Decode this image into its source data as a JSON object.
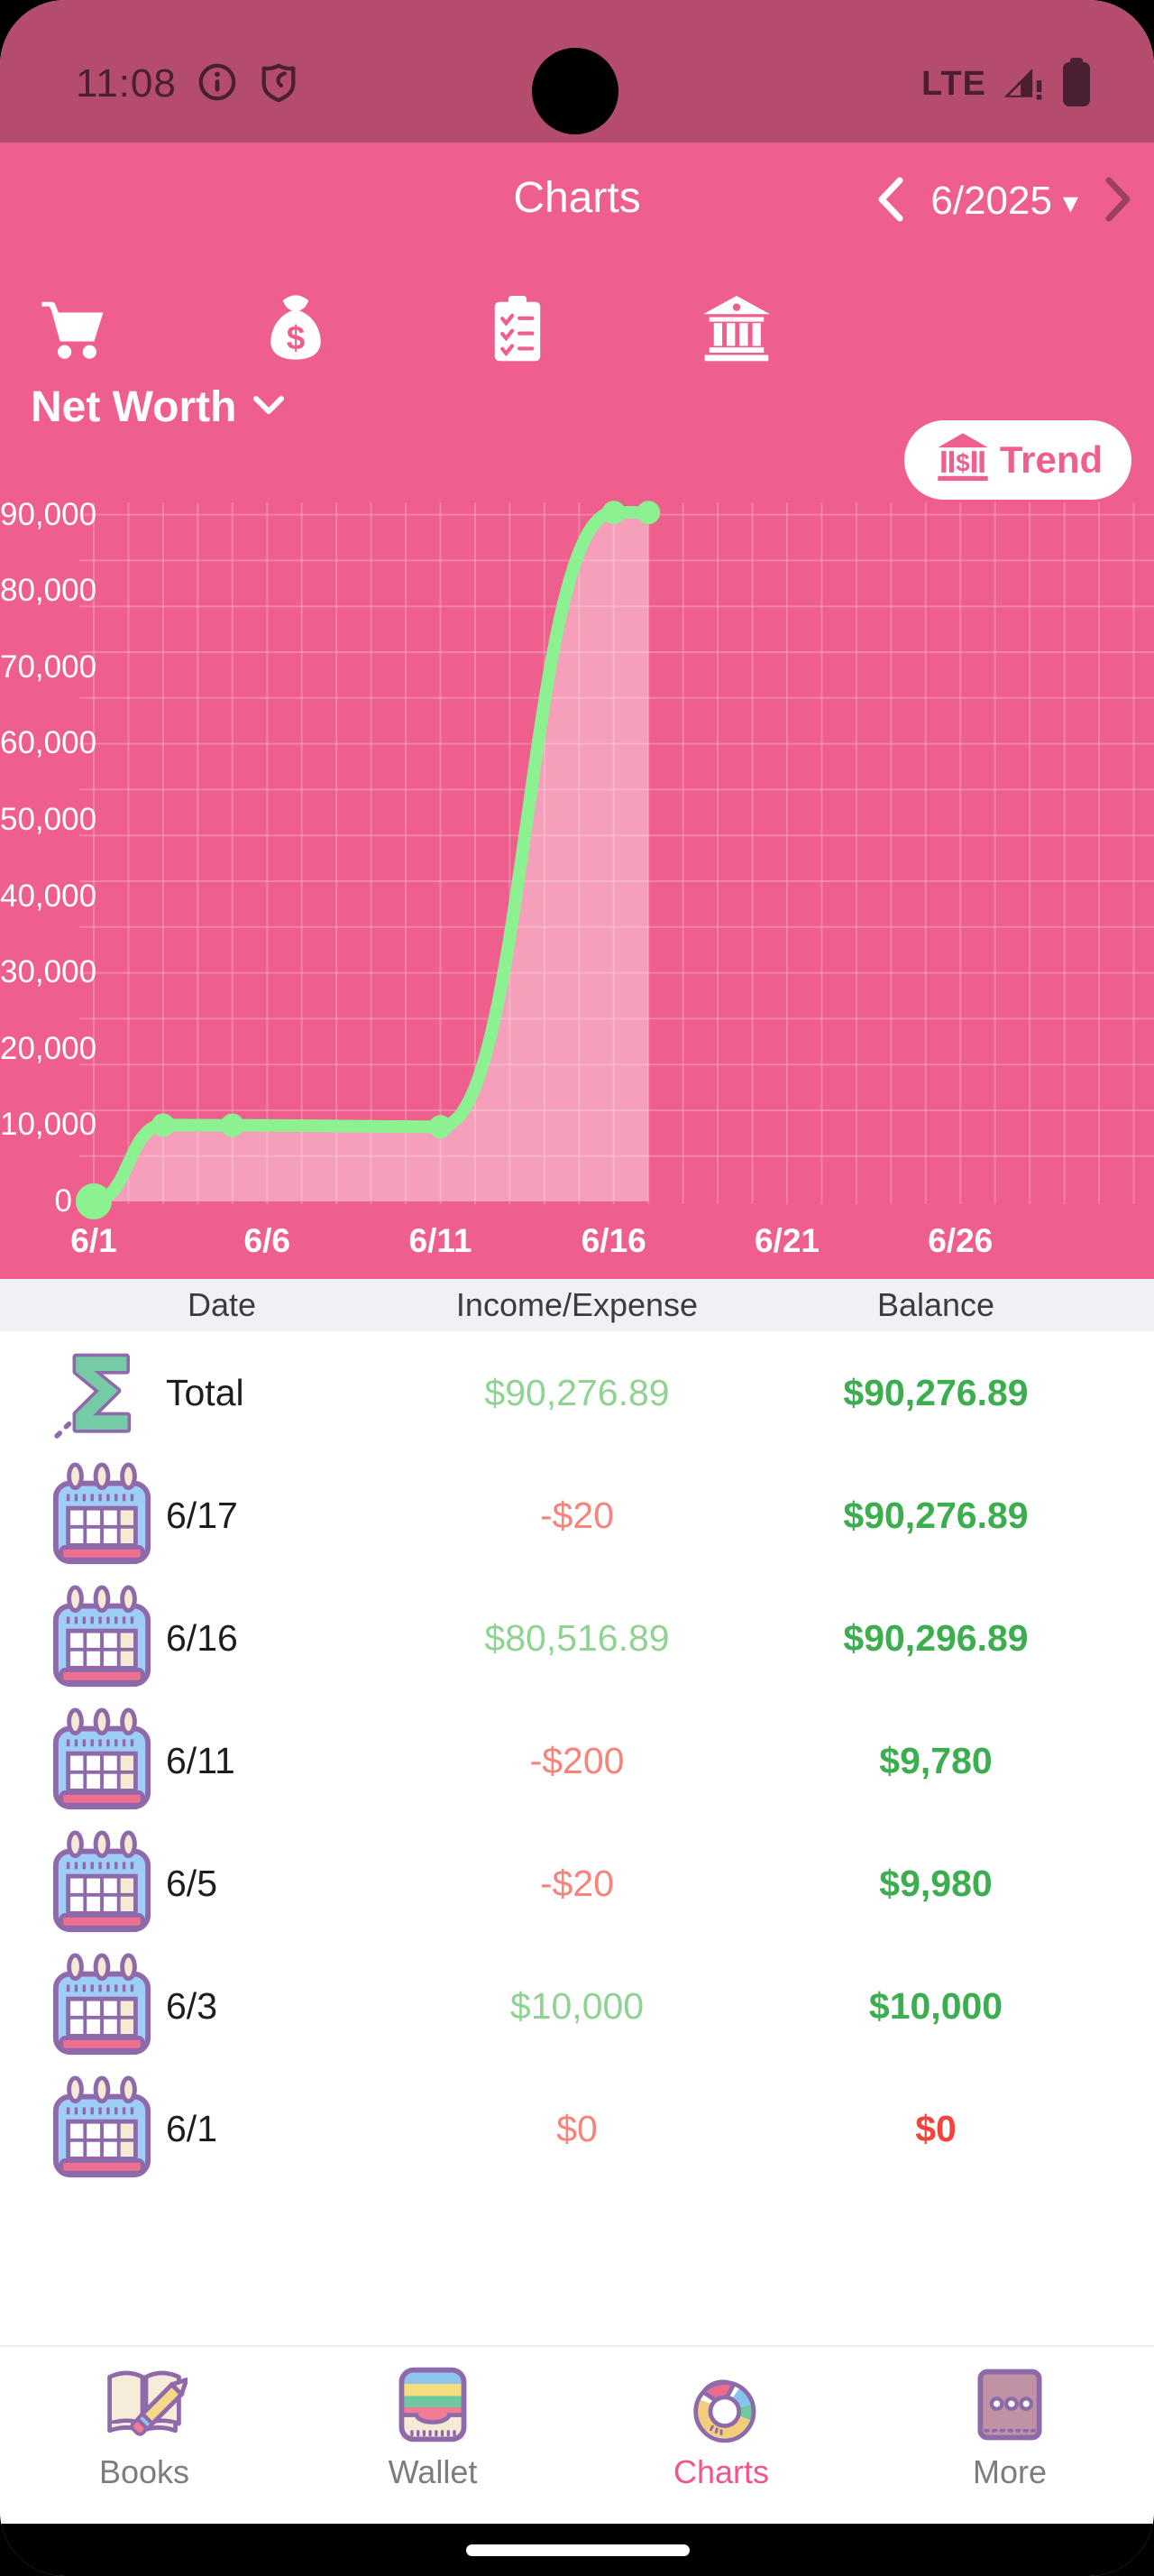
{
  "status_bar": {
    "time": "11:08",
    "network": "LTE"
  },
  "header": {
    "title": "Charts",
    "month": "6/2025",
    "metric_selector": "Net Worth",
    "trend_label": "Trend",
    "tabs": [
      {
        "icon": "shopping-cart"
      },
      {
        "icon": "money-bag"
      },
      {
        "icon": "checklist-clipboard"
      },
      {
        "icon": "bank"
      },
      {
        "icon": "bank-trend",
        "label": "Trend",
        "selected": true
      }
    ]
  },
  "colors": {
    "status_bar_bg": "#b44c6d",
    "header_pink": "#ef5f8e",
    "line_green": "#8cf191",
    "area_fill": "rgba(255,255,255,0.40)",
    "balance_green": "#3cae50",
    "income_green": "#8fd392",
    "income_red": "#f8837b",
    "balance_red": "#f2443d",
    "nav_active_pink": "#f0568a",
    "icon_purple": "#8f6aab"
  },
  "chart_data": {
    "type": "area",
    "title": "Net Worth",
    "x": [
      "6/1",
      "6/3",
      "6/5",
      "6/11",
      "6/16",
      "6/17"
    ],
    "values": [
      0,
      10000,
      9980,
      9780,
      90296.89,
      90276.89
    ],
    "xticks": [
      "6/1",
      "6/6",
      "6/11",
      "6/16",
      "6/21",
      "6/26"
    ],
    "yticks": [
      "0",
      "10,000",
      "20,000",
      "30,000",
      "40,000",
      "50,000",
      "60,000",
      "70,000",
      "80,000",
      "90,000"
    ],
    "ylim": [
      0,
      95000
    ],
    "grid": true,
    "legend": "none"
  },
  "table": {
    "headers": [
      "Date",
      "Income/Expense",
      "Balance"
    ],
    "rows": [
      {
        "icon": "sigma",
        "date": "Total",
        "income": "$90,276.89",
        "income_tone": "green",
        "balance": "$90,276.89",
        "balance_tone": "green"
      },
      {
        "icon": "calendar",
        "date": "6/17",
        "income": "-$20",
        "income_tone": "red",
        "balance": "$90,276.89",
        "balance_tone": "green"
      },
      {
        "icon": "calendar",
        "date": "6/16",
        "income": "$80,516.89",
        "income_tone": "green",
        "balance": "$90,296.89",
        "balance_tone": "green"
      },
      {
        "icon": "calendar",
        "date": "6/11",
        "income": "-$200",
        "income_tone": "red",
        "balance": "$9,780",
        "balance_tone": "green"
      },
      {
        "icon": "calendar",
        "date": "6/5",
        "income": "-$20",
        "income_tone": "red",
        "balance": "$9,980",
        "balance_tone": "green"
      },
      {
        "icon": "calendar",
        "date": "6/3",
        "income": "$10,000",
        "income_tone": "green",
        "balance": "$10,000",
        "balance_tone": "green"
      },
      {
        "icon": "calendar",
        "date": "6/1",
        "income": "$0",
        "income_tone": "red",
        "balance": "$0",
        "balance_tone": "red"
      }
    ]
  },
  "nav": {
    "items": [
      {
        "label": "Books",
        "icon": "books",
        "active": false
      },
      {
        "label": "Wallet",
        "icon": "wallet",
        "active": false
      },
      {
        "label": "Charts",
        "icon": "donut-chart",
        "active": true
      },
      {
        "label": "More",
        "icon": "more",
        "active": false
      }
    ]
  }
}
